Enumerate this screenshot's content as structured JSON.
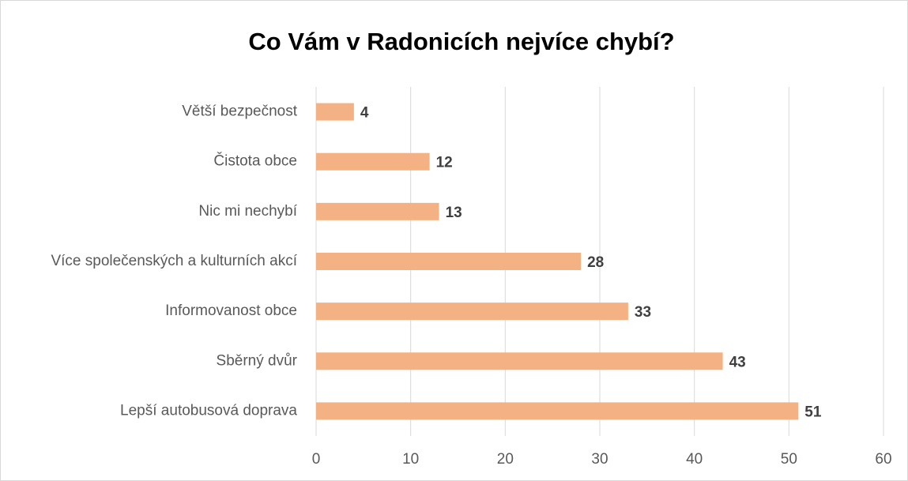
{
  "chart_data": {
    "type": "bar",
    "orientation": "horizontal",
    "title": "Co Vám v Radonicích nejvíce chybí?",
    "categories": [
      "Větší bezpečnost",
      "Čistota obce",
      "Nic mi nechybí",
      "Více společenských a kulturních akcí",
      "Informovanost obce",
      "Sběrný dvůr",
      "Lepší autobusová doprava"
    ],
    "values": [
      4,
      12,
      13,
      28,
      33,
      43,
      51
    ],
    "color": "#f4b183",
    "xlim": [
      0,
      60
    ],
    "xticks": [
      0,
      10,
      20,
      30,
      40,
      50,
      60
    ],
    "grid": true
  }
}
